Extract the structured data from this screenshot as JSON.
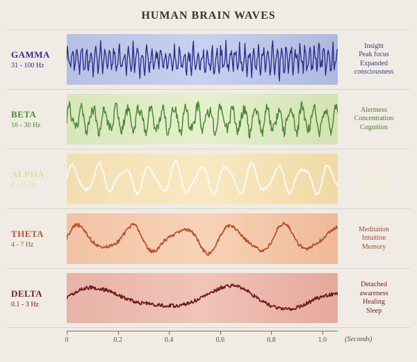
{
  "title": "HUMAN BRAIN WAVES",
  "title_fontsize": 16,
  "title_color": "#3a322b",
  "page_bg": "#f0ece5",
  "row_border_color": "#d8d3c8",
  "axis": {
    "line_color": "#806d5a",
    "tick_positions": [
      0,
      0.2,
      0.4,
      0.6,
      0.8,
      1.0
    ],
    "tick_labels": [
      "0",
      "0.2",
      "0.4",
      "0.6",
      "0.8",
      "1.0"
    ],
    "domain": [
      0,
      1.06
    ],
    "unit_label": "(Seconds)",
    "label_fontsize": 10,
    "label_color": "#5a4b3d"
  },
  "waves": [
    {
      "name": "GAMMA",
      "range": "31 - 100 Hz",
      "label_color": "#2d2f8b",
      "wave_color": "#2d2f8b",
      "line_width": 1.4,
      "bg_gradient": [
        "#b6c0e3",
        "#c7d2ef",
        "#aeb9e0"
      ],
      "desc_lines": [
        "Insight",
        "Peak focus",
        "Expanded",
        "consciousness"
      ],
      "desc_color": "#3b3d7a",
      "desc_fontsize": 10,
      "name_fontsize": 13,
      "freq_hz": 55,
      "amp": 0.65,
      "noise": 0.75,
      "seed": 11
    },
    {
      "name": "BETA",
      "range": "16 - 30 Hz",
      "label_color": "#4a8a2e",
      "wave_color": "#4a8a2e",
      "line_width": 1.5,
      "bg_gradient": [
        "#d8e6bb",
        "#e6f0cf",
        "#d4e2b5"
      ],
      "desc_lines": [
        "Alertness",
        "Concentration",
        "Cognition"
      ],
      "desc_color": "#4a7a2e",
      "desc_fontsize": 10,
      "name_fontsize": 13,
      "freq_hz": 22,
      "amp": 0.7,
      "noise": 0.55,
      "seed": 23
    },
    {
      "name": "ALPHA",
      "range": "8 - 15 Hz",
      "label_color": "#e6d69b",
      "wave_color": "#ffffff",
      "line_width": 1.8,
      "bg_gradient": [
        "#f3deb0",
        "#f9e9c2",
        "#f1d9a6"
      ],
      "desc_lines": [
        "Relaxation",
        "Visualization",
        "Creativity"
      ],
      "desc_color": "#f7ecc9",
      "desc_fontsize": 10,
      "name_fontsize": 13,
      "freq_hz": 10,
      "amp": 0.78,
      "noise": 0.12,
      "seed": 5
    },
    {
      "name": "THETA",
      "range": "4 - 7 Hz",
      "label_color": "#b5532f",
      "wave_color": "#b5532f",
      "line_width": 1.8,
      "bg_gradient": [
        "#f2c2a5",
        "#f7d3b8",
        "#efb998"
      ],
      "desc_lines": [
        "Meditation",
        "Intuition",
        "Memory"
      ],
      "desc_color": "#a34d2b",
      "desc_fontsize": 10,
      "name_fontsize": 13,
      "freq_hz": 5,
      "amp": 0.72,
      "noise": 0.18,
      "seed": 37
    },
    {
      "name": "DELTA",
      "range": "0.1 - 3 Hz",
      "label_color": "#6e1b1f",
      "wave_color": "#6e1b1f",
      "line_width": 1.8,
      "bg_gradient": [
        "#e9b2a6",
        "#f0c4b8",
        "#e5a99b"
      ],
      "desc_lines": [
        "Detached",
        "awareness",
        "Healing",
        "Sleep"
      ],
      "desc_color": "#6e1b1f",
      "desc_fontsize": 10,
      "name_fontsize": 13,
      "freq_hz": 2,
      "amp": 0.62,
      "noise": 0.22,
      "seed": 47
    }
  ]
}
